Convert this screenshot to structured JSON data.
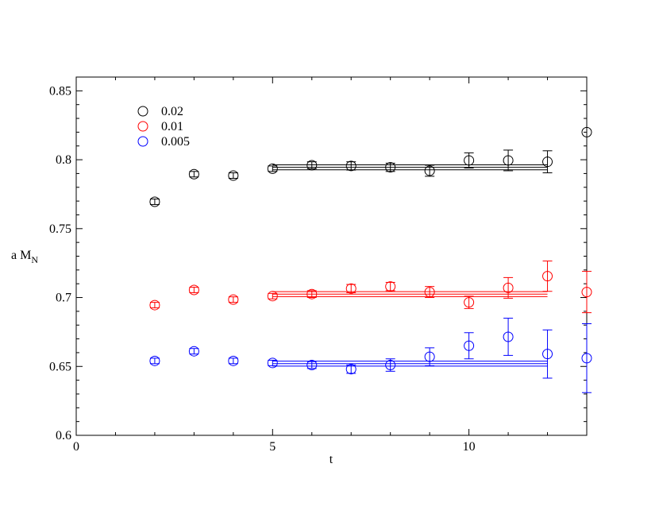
{
  "chart_data": {
    "type": "scatter",
    "title": "",
    "xlabel": "t",
    "ylabel_main": "a M",
    "ylabel_sub": "N",
    "xlim": [
      0,
      13
    ],
    "ylim": [
      0.6,
      0.86
    ],
    "x_major_ticks": [
      0,
      5,
      10
    ],
    "x_tick_labels": [
      "0",
      "5",
      "10"
    ],
    "y_major_ticks": [
      0.6,
      0.65,
      0.7,
      0.75,
      0.8,
      0.85
    ],
    "y_tick_labels": [
      "0.6",
      "0.65",
      "0.7",
      "0.75",
      "0.8",
      "0.85"
    ],
    "grid": false,
    "legend_position": "top-left",
    "series": [
      {
        "name": "0.02",
        "color": "#000000",
        "points": [
          {
            "x": 2,
            "y": 0.7695,
            "err": 0.002
          },
          {
            "x": 3,
            "y": 0.7895,
            "err": 0.002
          },
          {
            "x": 4,
            "y": 0.7885,
            "err": 0.002
          },
          {
            "x": 5,
            "y": 0.7935,
            "err": 0.002
          },
          {
            "x": 6,
            "y": 0.796,
            "err": 0.0025
          },
          {
            "x": 7,
            "y": 0.7955,
            "err": 0.003
          },
          {
            "x": 8,
            "y": 0.7945,
            "err": 0.003
          },
          {
            "x": 9,
            "y": 0.792,
            "err": 0.004
          },
          {
            "x": 10,
            "y": 0.7995,
            "err": 0.0055
          },
          {
            "x": 11,
            "y": 0.7995,
            "err": 0.0075
          },
          {
            "x": 12,
            "y": 0.7985,
            "err": 0.008
          },
          {
            "x": 13,
            "y": 0.82,
            "err": 0
          }
        ],
        "fit": {
          "x_start": 5,
          "x_end": 12,
          "center": 0.7945,
          "err": 0.0018
        }
      },
      {
        "name": "0.01",
        "color": "#ff0000",
        "points": [
          {
            "x": 2,
            "y": 0.6945,
            "err": 0.002
          },
          {
            "x": 3,
            "y": 0.7055,
            "err": 0.002
          },
          {
            "x": 4,
            "y": 0.6985,
            "err": 0.002
          },
          {
            "x": 5,
            "y": 0.701,
            "err": 0.002
          },
          {
            "x": 6,
            "y": 0.7025,
            "err": 0.0025
          },
          {
            "x": 7,
            "y": 0.7065,
            "err": 0.003
          },
          {
            "x": 8,
            "y": 0.708,
            "err": 0.003
          },
          {
            "x": 9,
            "y": 0.704,
            "err": 0.004
          },
          {
            "x": 10,
            "y": 0.6965,
            "err": 0.0045
          },
          {
            "x": 11,
            "y": 0.707,
            "err": 0.0075
          },
          {
            "x": 12,
            "y": 0.7155,
            "err": 0.011
          },
          {
            "x": 13,
            "y": 0.704,
            "err": 0.015
          }
        ],
        "fit": {
          "x_start": 5,
          "x_end": 12,
          "center": 0.7025,
          "err": 0.0018
        }
      },
      {
        "name": "0.005",
        "color": "#0000ff",
        "points": [
          {
            "x": 2,
            "y": 0.654,
            "err": 0.002
          },
          {
            "x": 3,
            "y": 0.661,
            "err": 0.002
          },
          {
            "x": 4,
            "y": 0.654,
            "err": 0.002
          },
          {
            "x": 5,
            "y": 0.6525,
            "err": 0.002
          },
          {
            "x": 6,
            "y": 0.651,
            "err": 0.0025
          },
          {
            "x": 7,
            "y": 0.648,
            "err": 0.003
          },
          {
            "x": 8,
            "y": 0.651,
            "err": 0.0045
          },
          {
            "x": 9,
            "y": 0.657,
            "err": 0.0065
          },
          {
            "x": 10,
            "y": 0.665,
            "err": 0.0095
          },
          {
            "x": 11,
            "y": 0.6715,
            "err": 0.0135
          },
          {
            "x": 12,
            "y": 0.659,
            "err": 0.0175
          },
          {
            "x": 13,
            "y": 0.656,
            "err": 0.025
          }
        ],
        "fit": {
          "x_start": 5,
          "x_end": 12,
          "center": 0.652,
          "err": 0.0018
        }
      }
    ]
  }
}
